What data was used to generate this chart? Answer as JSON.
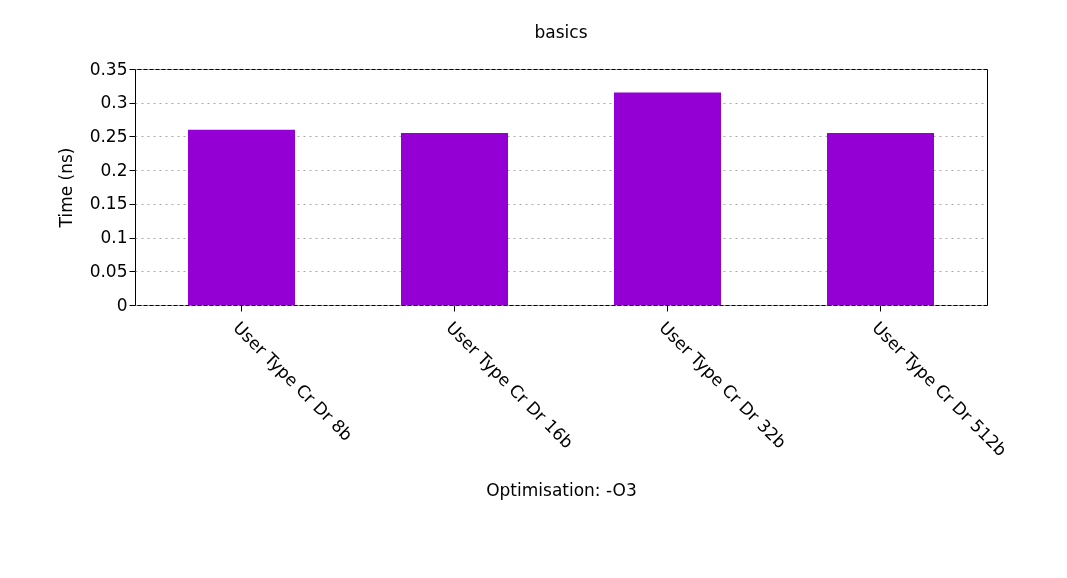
{
  "chart_data": {
    "type": "bar",
    "title": "basics",
    "xlabel": "Optimisation: -O3",
    "ylabel": "Time (ns)",
    "categories": [
      "User Type Cr Dr 8b",
      "User Type Cr Dr 16b",
      "User Type Cr Dr 32b",
      "User Type Cr Dr 512b"
    ],
    "values": [
      0.26,
      0.255,
      0.315,
      0.255
    ],
    "color": "#9400d3",
    "ylim": [
      0,
      0.35
    ],
    "yticks": [
      0,
      0.05,
      0.1,
      0.15,
      0.2,
      0.25,
      0.3,
      0.35
    ],
    "grid": "y"
  }
}
